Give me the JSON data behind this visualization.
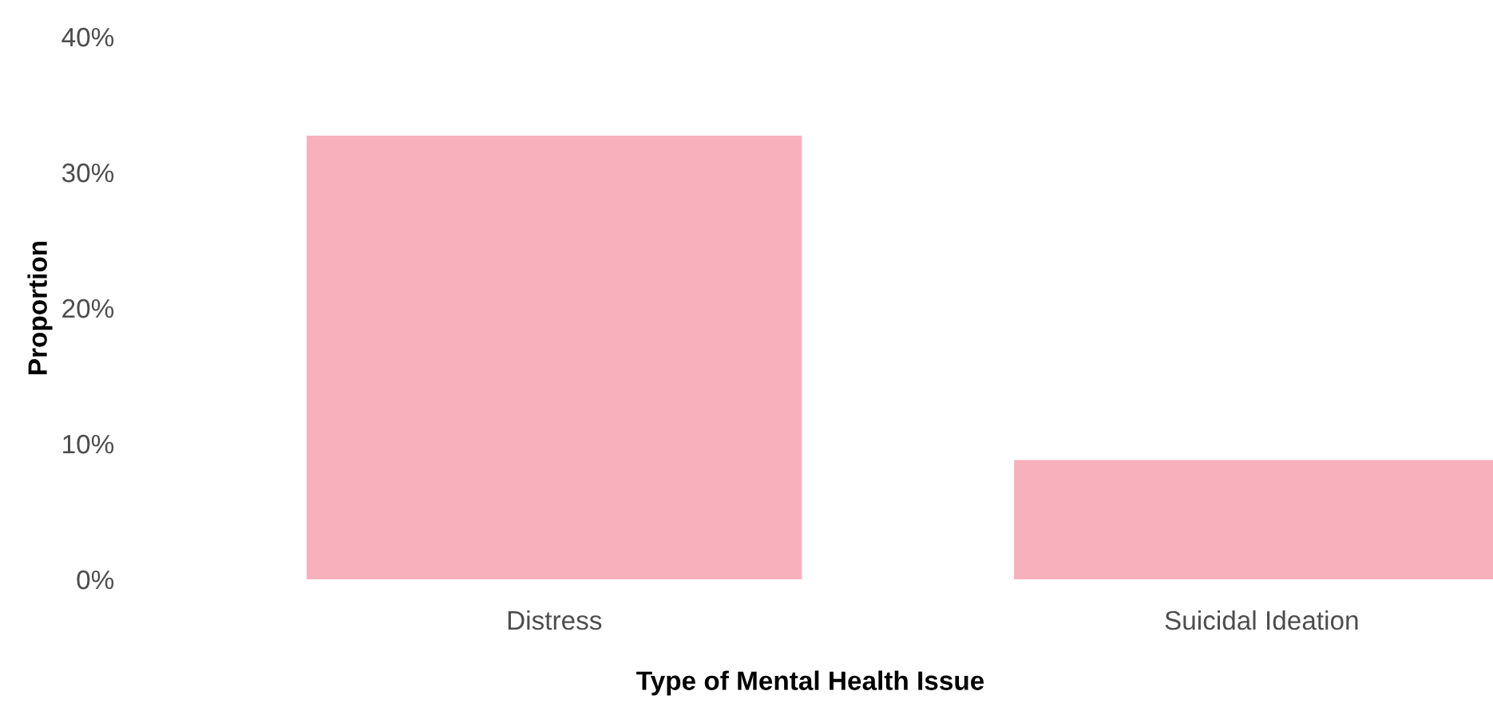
{
  "chart_data": {
    "type": "bar",
    "xlabel": "Type of Mental Health Issue",
    "ylabel": "Proportion",
    "categories": [
      "Distress",
      "Suicidal Ideation"
    ],
    "values": [
      32.7,
      8.8
    ],
    "color": "#f8b0bc",
    "ylim": [
      0,
      40
    ],
    "yticks": [
      {
        "value": 0,
        "label": "0%"
      },
      {
        "value": 10,
        "label": "10%"
      },
      {
        "value": 20,
        "label": "20%"
      },
      {
        "value": 30,
        "label": "30%"
      },
      {
        "value": 40,
        "label": "40%"
      }
    ],
    "grid": false,
    "legend": false
  }
}
